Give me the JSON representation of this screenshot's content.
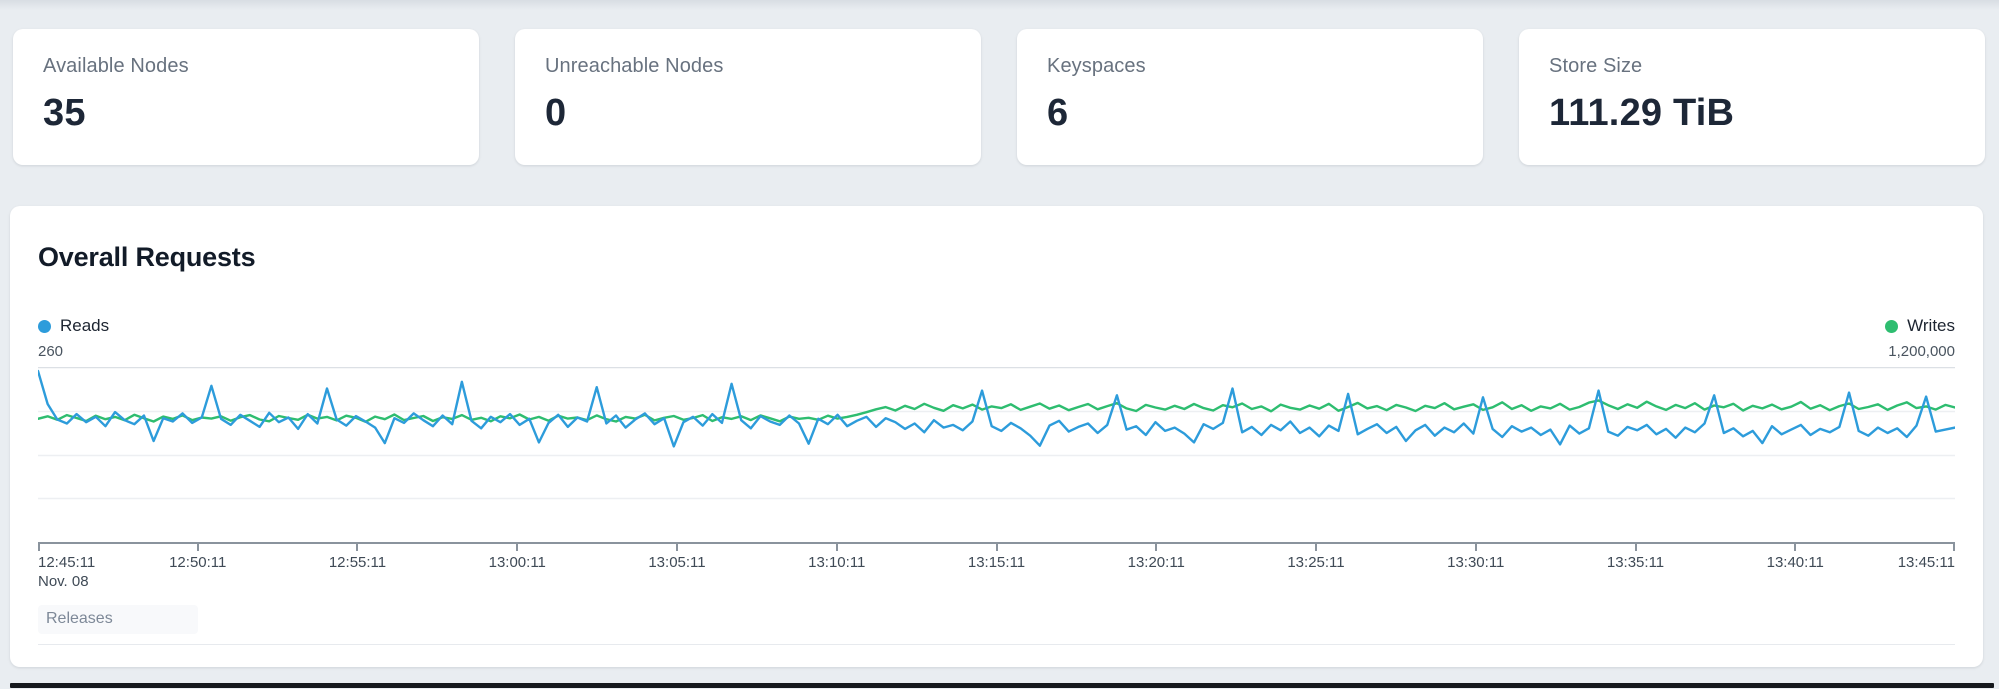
{
  "stats": {
    "cards": [
      {
        "label": "Available Nodes",
        "value": "35"
      },
      {
        "label": "Unreachable Nodes",
        "value": "0"
      },
      {
        "label": "Keyspaces",
        "value": "6"
      },
      {
        "label": "Store Size",
        "value": "111.29 TiB"
      }
    ]
  },
  "panel": {
    "title": "Overall Requests",
    "releases_label": "Releases"
  },
  "chart_data": {
    "type": "line",
    "title": "Overall Requests",
    "legend_position": "top (Reads left, Writes right)",
    "grid": "horizontal, 4 divisions, faint",
    "y_left": {
      "max": 260,
      "max_label": "260",
      "series": "Reads"
    },
    "y_right": {
      "max": 1200000,
      "max_label": "1,200,000",
      "series": "Writes"
    },
    "x_date": "Nov. 08",
    "x_ticks": [
      "12:45:11",
      "12:50:11",
      "12:55:11",
      "13:00:11",
      "13:05:11",
      "13:10:11",
      "13:15:11",
      "13:20:11",
      "13:25:11",
      "13:30:11",
      "13:35:11",
      "13:40:11",
      "13:45:11"
    ],
    "series": [
      {
        "name": "Reads",
        "color": "#2d9cdb",
        "axis": "left",
        "y_max": 260,
        "values": [
          254,
          205,
          182,
          176,
          190,
          178,
          186,
          172,
          193,
          181,
          175,
          188,
          150,
          184,
          179,
          191,
          177,
          185,
          232,
          183,
          174,
          189,
          180,
          171,
          192,
          178,
          185,
          168,
          190,
          176,
          228,
          182,
          173,
          187,
          179,
          170,
          147,
          184,
          177,
          191,
          181,
          172,
          188,
          175,
          238,
          180,
          169,
          186,
          178,
          190,
          174,
          183,
          148,
          177,
          189,
          171,
          185,
          179,
          230,
          176,
          188,
          170,
          182,
          191,
          175,
          184,
          142,
          178,
          186,
          173,
          190,
          177,
          235,
          181,
          169,
          187,
          179,
          174,
          188,
          176,
          146,
          183,
          175,
          189,
          172,
          180,
          186,
          171,
          184,
          178,
          168,
          176,
          163,
          181,
          170,
          174,
          166,
          179,
          225,
          172,
          165,
          177,
          169,
          158,
          143,
          173,
          180,
          164,
          171,
          176,
          162,
          174,
          218,
          167,
          172,
          159,
          178,
          165,
          170,
          161,
          148,
          175,
          168,
          177,
          228,
          163,
          171,
          159,
          174,
          166,
          179,
          162,
          170,
          157,
          173,
          165,
          220,
          160,
          168,
          175,
          162,
          171,
          150,
          166,
          174,
          158,
          170,
          163,
          176,
          161,
          215,
          168,
          156,
          172,
          164,
          170,
          159,
          167,
          145,
          173,
          161,
          169,
          225,
          164,
          158,
          171,
          166,
          174,
          160,
          168,
          155,
          170,
          163,
          176,
          218,
          162,
          169,
          157,
          165,
          147,
          172,
          160,
          167,
          174,
          159,
          168,
          163,
          171,
          222,
          165,
          158,
          170,
          162,
          169,
          156,
          173,
          216,
          164,
          167,
          170
        ]
      },
      {
        "name": "Writes",
        "color": "#2ebd70",
        "axis": "right",
        "y_max": 1200000,
        "values": [
          845000,
          862000,
          838000,
          870000,
          850000,
          830000,
          866000,
          842000,
          858000,
          835000,
          872000,
          848000,
          826000,
          860000,
          844000,
          868000,
          836000,
          854000,
          846000,
          862000,
          832000,
          856000,
          870000,
          840000,
          828000,
          864000,
          850000,
          838000,
          872000,
          846000,
          858000,
          834000,
          866000,
          852000,
          824000,
          860000,
          842000,
          874000,
          836000,
          850000,
          864000,
          830000,
          856000,
          844000,
          870000,
          838000,
          852000,
          828000,
          862000,
          848000,
          874000,
          840000,
          858000,
          832000,
          866000,
          846000,
          854000,
          836000,
          868000,
          842000,
          826000,
          858000,
          846000,
          872000,
          834000,
          852000,
          864000,
          838000,
          850000,
          870000,
          830000,
          856000,
          844000,
          862000,
          836000,
          868000,
          848000,
          828000,
          860000,
          845000,
          852000,
          838000,
          866000,
          846000,
          858000,
          872000,
          890000,
          910000,
          925000,
          902000,
          934000,
          912000,
          948000,
          920000,
          900000,
          938000,
          916000,
          942000,
          908000,
          930000,
          918000,
          944000,
          906000,
          928000,
          950000,
          914000,
          936000,
          904000,
          926000,
          946000,
          910000,
          932000,
          952000,
          916000,
          898000,
          940000,
          922000,
          908000,
          934000,
          912000,
          946000,
          918000,
          902000,
          938000,
          924000,
          950000,
          912000,
          930000,
          896000,
          942000,
          920000,
          908000,
          936000,
          914000,
          948000,
          900000,
          926000,
          954000,
          916000,
          932000,
          904000,
          940000,
          922000,
          898000,
          934000,
          918000,
          952000,
          910000,
          928000,
          944000,
          906000,
          924000,
          958000,
          912000,
          938000,
          900000,
          930000,
          916000,
          948000,
          908000,
          926000,
          956000,
          970000,
          938000,
          912000,
          944000,
          920000,
          962000,
          930000,
          906000,
          940000,
          918000,
          952000,
          908000,
          936000,
          924000,
          948000,
          902000,
          934000,
          916000,
          942000,
          910000,
          928000,
          960000,
          914000,
          938000,
          904000,
          932000,
          950000,
          912000,
          926000,
          944000,
          906000,
          936000,
          958000,
          918000,
          930000,
          908000,
          940000,
          922000
        ]
      }
    ],
    "colors": {
      "grid_top": "#dce0e5",
      "grid_faint": "#edeff2",
      "axis": "#8a939d"
    }
  }
}
